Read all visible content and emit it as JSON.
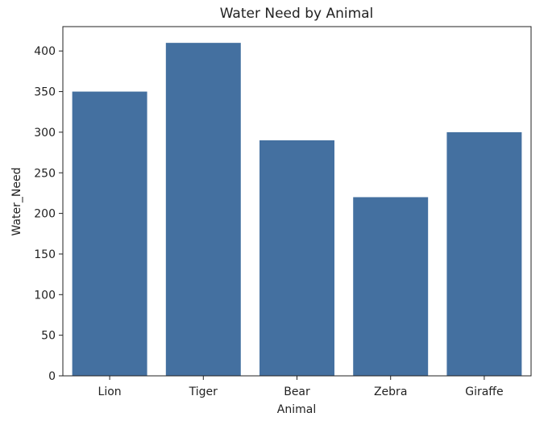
{
  "chart_data": {
    "type": "bar",
    "title": "Water Need by Animal",
    "xlabel": "Animal",
    "ylabel": "Water_Need",
    "categories": [
      "Lion",
      "Tiger",
      "Bear",
      "Zebra",
      "Giraffe"
    ],
    "values": [
      350,
      410,
      290,
      220,
      300
    ],
    "ylim": [
      0,
      430
    ],
    "yticks": [
      0,
      50,
      100,
      150,
      200,
      250,
      300,
      350,
      400
    ],
    "grid": false,
    "legend": "none",
    "bar_color": "#4470a0"
  }
}
